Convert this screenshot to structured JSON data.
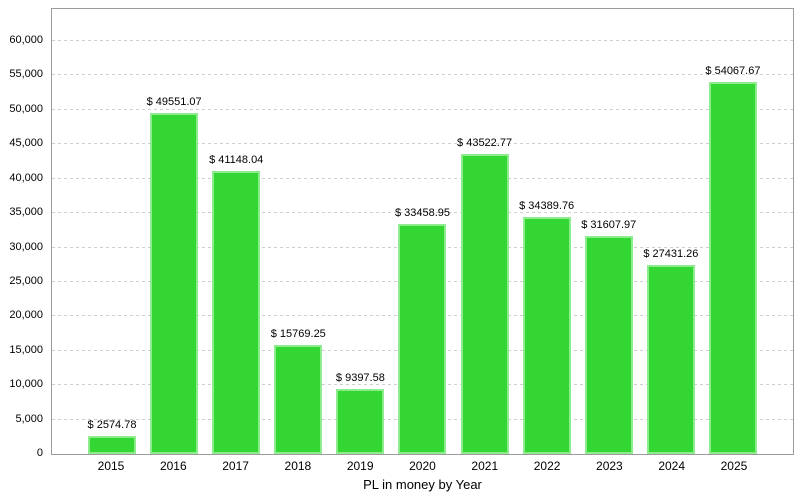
{
  "chart_data": {
    "type": "bar",
    "title": "",
    "xlabel": "PL in money by Year",
    "ylabel": "",
    "categories": [
      "2015",
      "2016",
      "2017",
      "2018",
      "2019",
      "2020",
      "2021",
      "2022",
      "2023",
      "2024",
      "2025"
    ],
    "values": [
      2574.78,
      49551.07,
      41148.04,
      15769.25,
      9397.58,
      33458.95,
      43522.77,
      34389.76,
      31607.97,
      27431.26,
      54067.67
    ],
    "bar_labels": [
      "$ 2574.78",
      "$ 49551.07",
      "$ 41148.04",
      "$ 15769.25",
      "$ 9397.58",
      "$ 33458.95",
      "$ 43522.77",
      "$ 34389.76",
      "$ 31607.97",
      "$ 27431.26",
      "$ 54067.67"
    ],
    "value_label_prefix": "$ ",
    "yticks": [
      0,
      5000,
      10000,
      15000,
      20000,
      25000,
      30000,
      35000,
      40000,
      45000,
      50000,
      55000,
      60000
    ],
    "ytick_labels": [
      "0",
      "5,000",
      "10,000",
      "15,000",
      "20,000",
      "25,000",
      "30,000",
      "35,000",
      "40,000",
      "45,000",
      "50,000",
      "55,000",
      "60,000"
    ],
    "ylim": [
      0,
      64650
    ],
    "grid": "horizontal-dashed",
    "legend": "none",
    "colors": {
      "bar_fill": "#33d633",
      "bar_edge": "#8dec8d",
      "gridline": "#cfcfcf",
      "plot_border": "#9b9b9b",
      "text": "#000000",
      "background": "#ffffff"
    }
  }
}
